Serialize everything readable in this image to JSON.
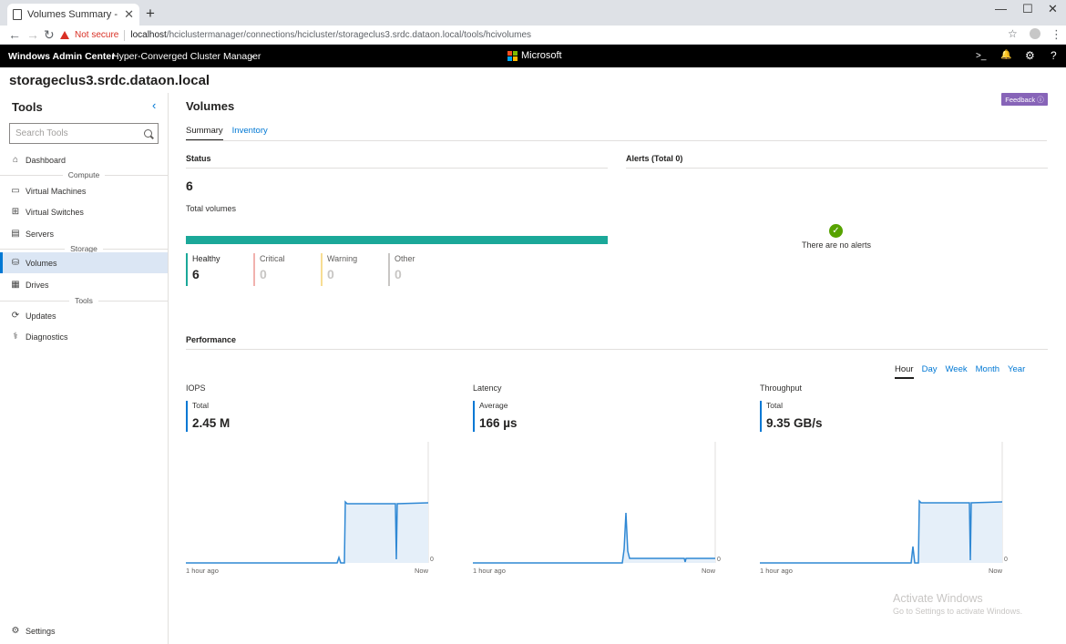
{
  "browser": {
    "tab_title": "Volumes Summary - Volumes - H",
    "tab_close": "✕",
    "new_tab": "+",
    "minimize": "—",
    "maximize": "☐",
    "close": "✕",
    "back": "←",
    "forward": "→",
    "reload": "↻",
    "not_secure": "Not secure",
    "url_host": "localhost",
    "url_path": "/hciclustermanager/connections/hcicluster/storageclus3.srdc.dataon.local/tools/hcivolumes",
    "star": "☆",
    "menu": "⋮"
  },
  "header": {
    "app_title": "Windows Admin Center",
    "context": "Hyper-Converged Cluster Manager",
    "brand": "Microsoft",
    "brand_colors": [
      "#f25022",
      "#7fba00",
      "#00a4ef",
      "#ffb900"
    ],
    "icons": [
      "powershell-icon",
      "notifications-icon",
      "settings-icon",
      "help-icon"
    ],
    "chevron": "⌄",
    "powershell": ">_",
    "bell": "🔔",
    "gear": "⚙",
    "help": "?"
  },
  "server_name": "storageclus3.srdc.dataon.local",
  "sidebar": {
    "title": "Tools",
    "collapse": "‹",
    "search_placeholder": "Search Tools",
    "groups": {
      "compute": "Compute",
      "storage": "Storage",
      "tools": "Tools"
    },
    "items": [
      {
        "label": "Dashboard",
        "icon": "⌂"
      },
      {
        "label": "Virtual Machines",
        "icon": "▭"
      },
      {
        "label": "Virtual Switches",
        "icon": "⊞"
      },
      {
        "label": "Servers",
        "icon": "▤"
      },
      {
        "label": "Volumes",
        "icon": "⛁"
      },
      {
        "label": "Drives",
        "icon": "▦"
      },
      {
        "label": "Updates",
        "icon": "⟳"
      },
      {
        "label": "Diagnostics",
        "icon": "⚕"
      }
    ],
    "settings_label": "Settings",
    "settings_icon": "⚙",
    "active_item": "Volumes"
  },
  "main": {
    "title": "Volumes",
    "feedback_label": "Feedback ⓘ",
    "tabs": [
      {
        "label": "Summary",
        "selected": true
      },
      {
        "label": "Inventory",
        "selected": false
      }
    ],
    "status": {
      "title": "Status",
      "count": "6",
      "caption": "Total volumes",
      "tiles": [
        {
          "label": "Healthy",
          "value": "6",
          "color": "#1ba899"
        },
        {
          "label": "Critical",
          "value": "0",
          "color": "#f1b2ae"
        },
        {
          "label": "Warning",
          "value": "0",
          "color": "#f7dd93"
        },
        {
          "label": "Other",
          "value": "0",
          "color": "#c8c6c4"
        }
      ]
    },
    "alerts": {
      "title": "Alerts (Total 0)",
      "message": "There are no alerts",
      "check": "✓"
    },
    "performance": {
      "title": "Performance",
      "ranges": [
        {
          "label": "Hour",
          "selected": true
        },
        {
          "label": "Day",
          "selected": false
        },
        {
          "label": "Week",
          "selected": false
        },
        {
          "label": "Month",
          "selected": false
        },
        {
          "label": "Year",
          "selected": false
        }
      ],
      "metrics": [
        {
          "title": "IOPS",
          "stat_label": "Total",
          "stat_value": "2.45 M",
          "zero": "0",
          "x_start": "1 hour ago",
          "x_end": "Now"
        },
        {
          "title": "Latency",
          "stat_label": "Average",
          "stat_value": "166 µs",
          "zero": "0",
          "x_start": "1 hour ago",
          "x_end": "Now"
        },
        {
          "title": "Throughput",
          "stat_label": "Total",
          "stat_value": "9.35 GB/s",
          "zero": "0",
          "x_start": "1 hour ago",
          "x_end": "Now"
        }
      ]
    }
  },
  "watermark": {
    "title": "Activate Windows",
    "subtitle": "Go to Settings to activate Windows."
  }
}
